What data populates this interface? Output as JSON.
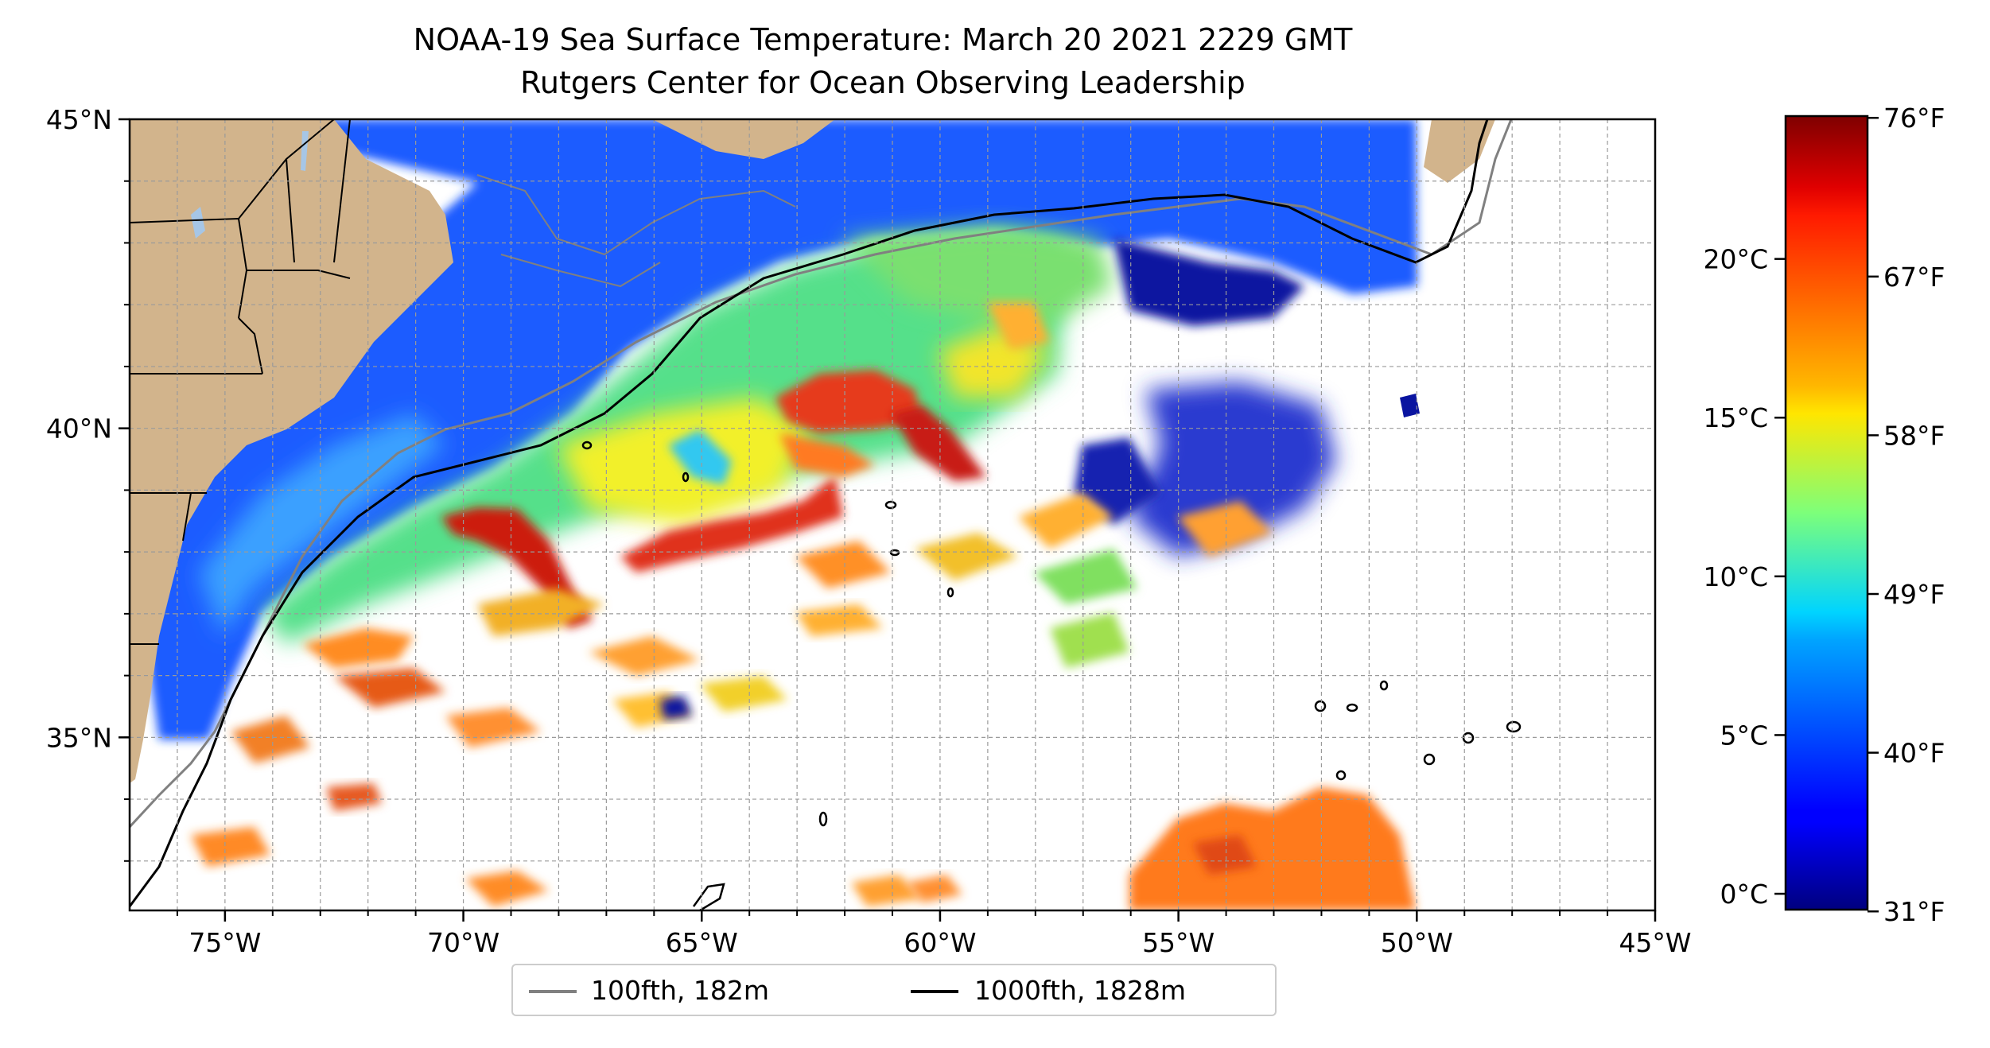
{
  "title": "NOAA-19 Sea Surface Temperature: March 20 2021 2229 GMT",
  "subtitle": "Rutgers Center for Ocean Observing Leadership",
  "map": {
    "lon_range": [
      -77,
      -45
    ],
    "lat_range": [
      32.2,
      45
    ],
    "lon_ticks": [
      {
        "value": -75,
        "label": "75°W"
      },
      {
        "value": -70,
        "label": "70°W"
      },
      {
        "value": -65,
        "label": "65°W"
      },
      {
        "value": -60,
        "label": "60°W"
      },
      {
        "value": -55,
        "label": "55°W"
      },
      {
        "value": -50,
        "label": "50°W"
      },
      {
        "value": -45,
        "label": "45°W"
      }
    ],
    "lat_ticks": [
      {
        "value": 35,
        "label": "35°N"
      },
      {
        "value": 40,
        "label": "40°N"
      },
      {
        "value": 45,
        "label": "45°N"
      }
    ],
    "grid": "dashed",
    "colors": {
      "land": "#d2b48c",
      "ocean_background": "#ffffff",
      "lakes": "#a6c6e6",
      "isobath_100": "#808080",
      "isobath_1000": "#000000"
    }
  },
  "colorbar": {
    "colormap": "jet",
    "range_c": [
      -0.5,
      24.5
    ],
    "celsius_ticks": [
      {
        "value": 0,
        "label": "0°C"
      },
      {
        "value": 5,
        "label": "5°C"
      },
      {
        "value": 10,
        "label": "10°C"
      },
      {
        "value": 15,
        "label": "15°C"
      },
      {
        "value": 20,
        "label": "20°C"
      }
    ],
    "fahrenheit_ticks": [
      {
        "value": 31,
        "label": "31°F"
      },
      {
        "value": 40,
        "label": "40°F"
      },
      {
        "value": 49,
        "label": "49°F"
      },
      {
        "value": 58,
        "label": "58°F"
      },
      {
        "value": 67,
        "label": "67°F"
      },
      {
        "value": 76,
        "label": "76°F"
      }
    ]
  },
  "legend": {
    "items": [
      {
        "label": "100fth, 182m",
        "color": "#808080"
      },
      {
        "label": "1000fth, 1828m",
        "color": "#000000"
      }
    ]
  }
}
